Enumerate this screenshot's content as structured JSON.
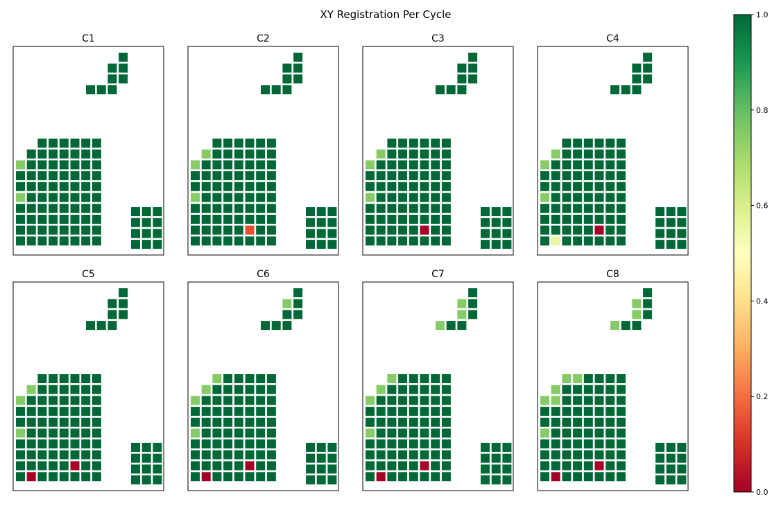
{
  "chart_data": {
    "type": "heatmap",
    "title": "XY Registration Per Cycle",
    "colormap": "RdYlGn",
    "colorbar": {
      "range": [
        0.0,
        1.0
      ],
      "ticks": [
        "0.0",
        "0.2",
        "0.4",
        "0.6",
        "0.8",
        "1.0"
      ]
    },
    "colors": {
      "full": "#006837",
      "high": "#78c565",
      "low": "#c11f26",
      "min": "#a50026",
      "mid": "#f7fbb6"
    },
    "grid": {
      "upper_tiles": [
        [
          0,
          3
        ],
        [
          1,
          2
        ],
        [
          1,
          3
        ],
        [
          2,
          2
        ],
        [
          2,
          3
        ],
        [
          3,
          0
        ],
        [
          3,
          1
        ],
        [
          3,
          2
        ]
      ],
      "left_tiles_rows": [
        {
          "row": 0,
          "cols": [
            2,
            3,
            4,
            5,
            6,
            7
          ]
        },
        {
          "row": 1,
          "cols": [
            1,
            2,
            3,
            4,
            5,
            6,
            7
          ]
        },
        {
          "row": 2,
          "cols": [
            0,
            1,
            2,
            3,
            4,
            5,
            6,
            7
          ]
        },
        {
          "row": 3,
          "cols": [
            0,
            1,
            2,
            3,
            4,
            5,
            6,
            7
          ]
        },
        {
          "row": 4,
          "cols": [
            0,
            1,
            2,
            3,
            4,
            5,
            6,
            7
          ]
        },
        {
          "row": 5,
          "cols": [
            0,
            1,
            2,
            3,
            4,
            5,
            6,
            7
          ]
        },
        {
          "row": 6,
          "cols": [
            0,
            1,
            2,
            3,
            4,
            5,
            6,
            7
          ]
        },
        {
          "row": 7,
          "cols": [
            0,
            1,
            2,
            3,
            4,
            5,
            6,
            7
          ]
        },
        {
          "row": 8,
          "cols": [
            0,
            1,
            2,
            3,
            4,
            5,
            6,
            7
          ]
        },
        {
          "row": 9,
          "cols": [
            0,
            1,
            2,
            3,
            4,
            5,
            6,
            7
          ]
        }
      ],
      "right_tiles": {
        "rows": 4,
        "cols": 3
      }
    },
    "panels": [
      {
        "title": "C1",
        "values": {
          "L-2-0": 0.75,
          "L-5-0": 0.75
        }
      },
      {
        "title": "C2",
        "values": {
          "L-1-1": 0.75,
          "L-2-0": 0.75,
          "L-5-0": 0.75,
          "L-8-5": 0.15
        }
      },
      {
        "title": "C3",
        "values": {
          "L-1-1": 0.75,
          "L-2-0": 0.75,
          "L-5-0": 0.75,
          "L-8-5": 0.0
        }
      },
      {
        "title": "C4",
        "values": {
          "L-1-1": 0.75,
          "L-2-0": 0.75,
          "L-5-0": 0.75,
          "L-8-5": 0.0,
          "L-9-1": 0.55
        }
      },
      {
        "title": "C5",
        "values": {
          "L-1-1": 0.75,
          "L-2-0": 0.75,
          "L-5-0": 0.75,
          "L-8-5": 0.0,
          "L-9-1": 0.0
        }
      },
      {
        "title": "C6",
        "values": {
          "U-1-2": 0.75,
          "L-0-2": 0.75,
          "L-1-1": 0.75,
          "L-2-0": 0.75,
          "L-5-0": 0.75,
          "L-8-5": 0.0,
          "L-9-1": 0.0
        }
      },
      {
        "title": "C7",
        "values": {
          "U-1-2": 0.75,
          "U-2-2": 0.75,
          "U-3-0": 0.75,
          "L-0-2": 0.75,
          "L-1-1": 0.75,
          "L-2-0": 0.75,
          "L-5-0": 0.75,
          "L-8-5": 0.0,
          "L-9-1": 0.0
        }
      },
      {
        "title": "C8",
        "values": {
          "U-1-2": 0.75,
          "U-2-2": 0.75,
          "U-3-0": 0.75,
          "L-0-2": 0.75,
          "L-0-3": 0.75,
          "L-1-1": 0.75,
          "L-2-0": 0.75,
          "L-2-1": 0.75,
          "L-5-0": 0.75,
          "L-8-5": 0.0,
          "L-9-1": 0.0
        }
      }
    ]
  }
}
